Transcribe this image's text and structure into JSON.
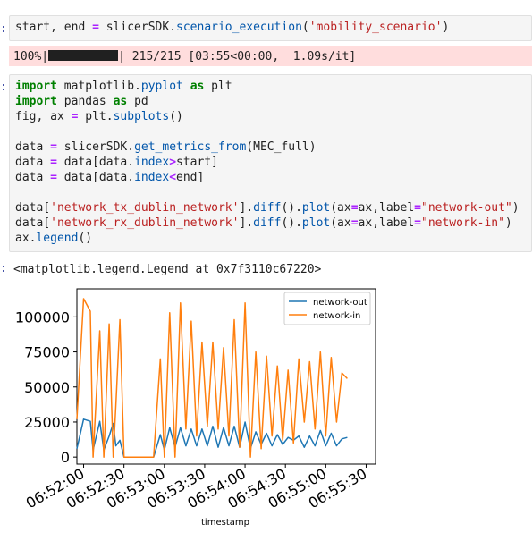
{
  "cells": {
    "cell1": {
      "prompt": ":",
      "code_plain1": "start, end ",
      "op1": "=",
      "code_plain2": " slicerSDK.",
      "fn1": "scenario_execution",
      "code_plain3": "(",
      "str1": "'mobility_scenario'",
      "code_plain4": ")"
    },
    "progress": {
      "percent_text": "100%|",
      "bar_fill": 1.0,
      "rest_text": "| 215/215 [03:55<00:00,  1.09s/it]"
    },
    "cell2": {
      "prompt": ":",
      "l1_kw": "import",
      "l1_mod": " matplotlib.",
      "l1_fn": "pyplot",
      "l1_as": "as",
      "l1_name": " plt",
      "l2_kw": "import",
      "l2_mod": " pandas ",
      "l2_as": "as",
      "l2_name": " pd",
      "l3_a": "fig, ax ",
      "l3_op": "=",
      "l3_b": " plt.",
      "l3_fn": "subplots",
      "l3_c": "()",
      "l5_a": "data ",
      "l5_op": "=",
      "l5_b": " slicerSDK.",
      "l5_fn": "get_metrics_from",
      "l5_c": "(MEC_full)",
      "l6_a": "data ",
      "l6_op": "=",
      "l6_b": " data[data.",
      "l6_fn": "index",
      "l6_op2": ">",
      "l6_c": "start]",
      "l7_a": "data ",
      "l7_op": "=",
      "l7_b": " data[data.",
      "l7_fn": "index",
      "l7_op2": "<",
      "l7_c": "end]",
      "l9_a": "data[",
      "l9_str": "'network_tx_dublin_network'",
      "l9_b": "].",
      "l9_fn1": "diff",
      "l9_c": "().",
      "l9_fn2": "plot",
      "l9_d": "(ax",
      "l9_op1": "=",
      "l9_e": "ax,label",
      "l9_op2": "=",
      "l9_str2": "\"network-out\"",
      "l9_f": ")",
      "l10_a": "data[",
      "l10_str": "'network_rx_dublin_network'",
      "l10_b": "].",
      "l10_fn1": "diff",
      "l10_c": "().",
      "l10_fn2": "plot",
      "l10_d": "(ax",
      "l10_op1": "=",
      "l10_e": "ax,label",
      "l10_op2": "=",
      "l10_str2": "\"network-in\"",
      "l10_f": ")",
      "l11_a": "ax.",
      "l11_fn": "legend",
      "l11_b": "()"
    },
    "output": {
      "prompt": ":",
      "text": "<matplotlib.legend.Legend at 0x7f3110c67220>"
    }
  },
  "chart_data": {
    "type": "line",
    "title": "",
    "xlabel": "timestamp",
    "ylabel": "",
    "xlim_seconds": [
      3115,
      3337
    ],
    "ylim": [
      -5000,
      120000
    ],
    "x_tick_labels": [
      "06:52:00",
      "06:52:30",
      "06:53:00",
      "06:53:30",
      "06:54:00",
      "06:54:30",
      "06:55:00",
      "06:55:30"
    ],
    "x_tick_seconds": [
      3120,
      3150,
      3180,
      3210,
      3240,
      3270,
      3300,
      3330
    ],
    "y_ticks": [
      0,
      25000,
      50000,
      75000,
      100000
    ],
    "y_tick_labels": [
      "0",
      "25000",
      "50000",
      "75000",
      "100000"
    ],
    "legend_position": "top-right",
    "series": [
      {
        "name": "network-out",
        "color": "#1f77b4",
        "points": [
          [
            3115,
            6000
          ],
          [
            3120,
            27000
          ],
          [
            3125,
            25500
          ],
          [
            3127,
            5000
          ],
          [
            3132,
            25500
          ],
          [
            3135,
            5000
          ],
          [
            3139,
            15000
          ],
          [
            3142,
            24000
          ],
          [
            3144,
            8000
          ],
          [
            3147,
            12000
          ],
          [
            3150,
            0
          ],
          [
            3156,
            0
          ],
          [
            3165,
            0
          ],
          [
            3172,
            0
          ],
          [
            3177,
            16000
          ],
          [
            3180,
            5000
          ],
          [
            3184,
            21000
          ],
          [
            3188,
            7000
          ],
          [
            3192,
            21000
          ],
          [
            3196,
            8000
          ],
          [
            3200,
            20000
          ],
          [
            3204,
            8000
          ],
          [
            3208,
            20000
          ],
          [
            3212,
            8000
          ],
          [
            3216,
            22000
          ],
          [
            3220,
            7000
          ],
          [
            3224,
            21000
          ],
          [
            3228,
            8000
          ],
          [
            3232,
            22000
          ],
          [
            3236,
            7000
          ],
          [
            3240,
            25000
          ],
          [
            3244,
            6000
          ],
          [
            3248,
            18000
          ],
          [
            3252,
            9000
          ],
          [
            3256,
            17000
          ],
          [
            3260,
            8000
          ],
          [
            3264,
            16000
          ],
          [
            3268,
            9000
          ],
          [
            3272,
            14000
          ],
          [
            3276,
            12000
          ],
          [
            3280,
            15000
          ],
          [
            3284,
            7000
          ],
          [
            3288,
            15000
          ],
          [
            3292,
            8000
          ],
          [
            3296,
            19000
          ],
          [
            3300,
            8000
          ],
          [
            3304,
            17000
          ],
          [
            3308,
            8000
          ],
          [
            3312,
            13000
          ],
          [
            3316,
            14000
          ]
        ]
      },
      {
        "name": "network-in",
        "color": "#ff7f0e",
        "points": [
          [
            3115,
            27000
          ],
          [
            3120,
            113000
          ],
          [
            3125,
            104000
          ],
          [
            3127,
            0
          ],
          [
            3132,
            90000
          ],
          [
            3135,
            0
          ],
          [
            3139,
            95000
          ],
          [
            3142,
            0
          ],
          [
            3144,
            37000
          ],
          [
            3147,
            98000
          ],
          [
            3150,
            0
          ],
          [
            3156,
            0
          ],
          [
            3165,
            0
          ],
          [
            3172,
            0
          ],
          [
            3177,
            70000
          ],
          [
            3180,
            0
          ],
          [
            3184,
            103000
          ],
          [
            3188,
            0
          ],
          [
            3192,
            110000
          ],
          [
            3196,
            20000
          ],
          [
            3200,
            97000
          ],
          [
            3204,
            15000
          ],
          [
            3208,
            82000
          ],
          [
            3212,
            22000
          ],
          [
            3216,
            82000
          ],
          [
            3220,
            20000
          ],
          [
            3224,
            78000
          ],
          [
            3228,
            15000
          ],
          [
            3232,
            98000
          ],
          [
            3236,
            7000
          ],
          [
            3240,
            110000
          ],
          [
            3244,
            0
          ],
          [
            3248,
            75000
          ],
          [
            3252,
            6000
          ],
          [
            3256,
            72000
          ],
          [
            3260,
            15000
          ],
          [
            3264,
            65000
          ],
          [
            3268,
            12000
          ],
          [
            3272,
            62000
          ],
          [
            3276,
            10000
          ],
          [
            3280,
            70000
          ],
          [
            3284,
            25000
          ],
          [
            3288,
            68000
          ],
          [
            3292,
            20000
          ],
          [
            3296,
            75000
          ],
          [
            3300,
            15000
          ],
          [
            3304,
            71000
          ],
          [
            3308,
            25000
          ],
          [
            3312,
            60000
          ],
          [
            3316,
            56000
          ]
        ]
      }
    ]
  }
}
